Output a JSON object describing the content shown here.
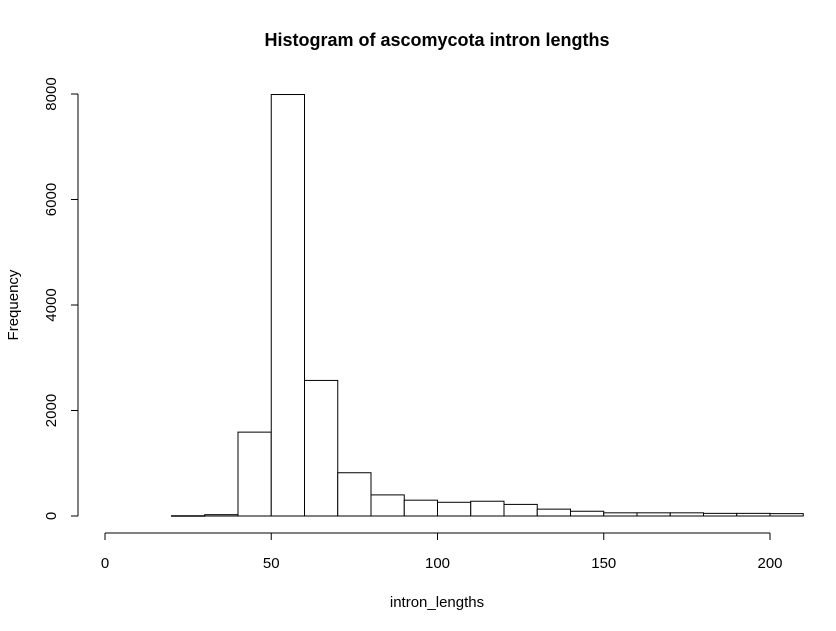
{
  "chart_data": {
    "type": "bar",
    "title": "Histogram of ascomycota intron lengths",
    "xlabel": "intron_lengths",
    "ylabel": "Frequency",
    "xlim": [
      0,
      210
    ],
    "ylim": [
      0,
      8000
    ],
    "x_ticks": [
      0,
      50,
      100,
      150,
      200
    ],
    "y_ticks": [
      0,
      2000,
      4000,
      6000,
      8000
    ],
    "bin_width": 10,
    "bins": [
      {
        "start": 20,
        "end": 30,
        "count": 5
      },
      {
        "start": 30,
        "end": 40,
        "count": 25
      },
      {
        "start": 40,
        "end": 50,
        "count": 1590
      },
      {
        "start": 50,
        "end": 60,
        "count": 7990
      },
      {
        "start": 60,
        "end": 70,
        "count": 2570
      },
      {
        "start": 70,
        "end": 80,
        "count": 820
      },
      {
        "start": 80,
        "end": 90,
        "count": 400
      },
      {
        "start": 90,
        "end": 100,
        "count": 300
      },
      {
        "start": 100,
        "end": 110,
        "count": 260
      },
      {
        "start": 110,
        "end": 120,
        "count": 280
      },
      {
        "start": 120,
        "end": 130,
        "count": 220
      },
      {
        "start": 130,
        "end": 140,
        "count": 130
      },
      {
        "start": 140,
        "end": 150,
        "count": 90
      },
      {
        "start": 150,
        "end": 160,
        "count": 60
      },
      {
        "start": 160,
        "end": 170,
        "count": 60
      },
      {
        "start": 170,
        "end": 180,
        "count": 60
      },
      {
        "start": 180,
        "end": 190,
        "count": 50
      },
      {
        "start": 190,
        "end": 200,
        "count": 50
      },
      {
        "start": 200,
        "end": 210,
        "count": 45
      }
    ],
    "bar_fill": "#ffffff",
    "bar_stroke": "#000000",
    "grid": false,
    "legend": "none"
  }
}
